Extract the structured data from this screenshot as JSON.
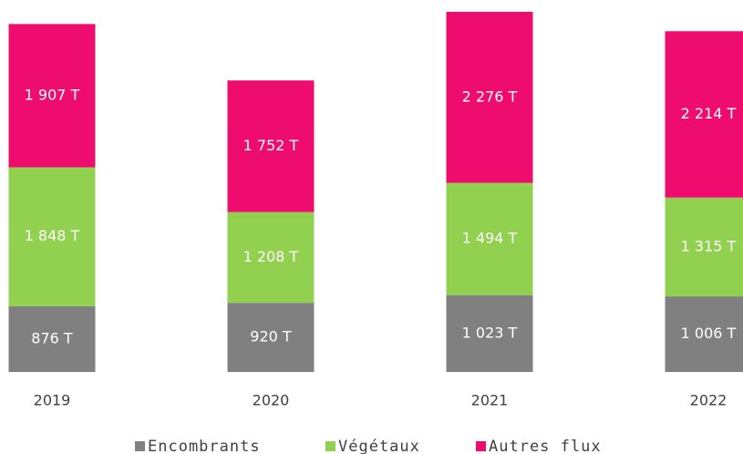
{
  "chart_data": {
    "type": "stacked-bar",
    "categories": [
      "2019",
      "2020",
      "2021",
      "2022"
    ],
    "series": [
      {
        "name": "Encombrants",
        "color": "#808080",
        "values": [
          876,
          920,
          1023,
          1006
        ],
        "value_labels": [
          "876 T",
          "920 T",
          "1 023 T",
          "1 006 T"
        ]
      },
      {
        "name": "Végétaux",
        "color": "#92d050",
        "values": [
          1848,
          1208,
          1494,
          1315
        ],
        "value_labels": [
          "1 848 T",
          "1 208 T",
          "1 494 T",
          "1 315 T"
        ]
      },
      {
        "name": "Autres flux",
        "color": "#ee0d6e",
        "values": [
          1907,
          1752,
          2276,
          2214
        ],
        "value_labels": [
          "1 907 T",
          "1 752 T",
          "2 276 T",
          "2 214 T"
        ]
      }
    ],
    "legend": "bottom"
  }
}
